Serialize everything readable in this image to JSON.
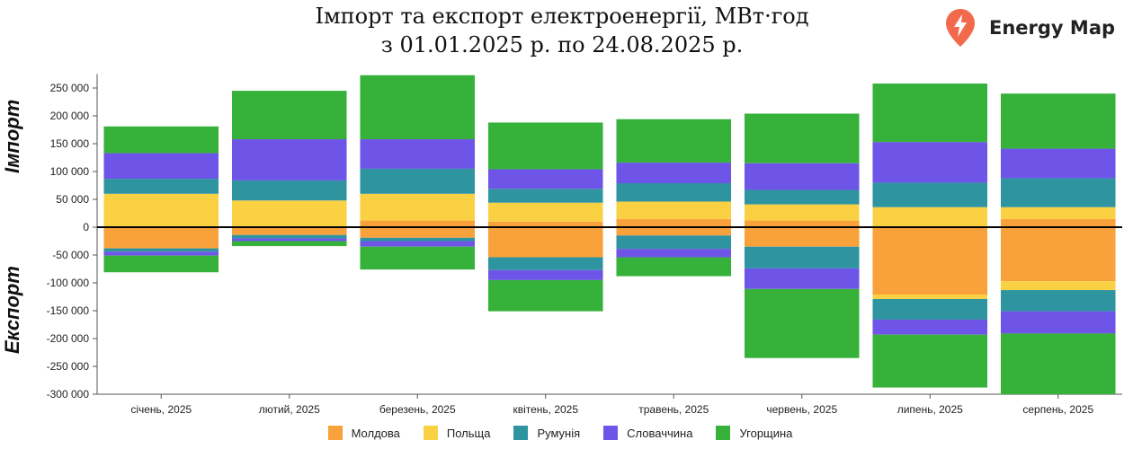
{
  "title": {
    "line1": "Імпорт та експорт електроенергії, МВт·год",
    "line2": "з 01.01.2025 р. по 24.08.2025 р."
  },
  "brand": {
    "name": "Energy Map",
    "icon": "lightning-pin-icon",
    "color": "#f26a4b"
  },
  "side_labels": {
    "import": "Імпорт",
    "export": "Експорт"
  },
  "chart_data": {
    "type": "bar",
    "stacked": true,
    "diverging": true,
    "title": "Імпорт та експорт електроенергії, МВт·год",
    "subtitle": "з 01.01.2025 р. по 24.08.2025 р.",
    "categories": [
      "січень, 2025",
      "лютий, 2025",
      "березень, 2025",
      "квітень, 2025",
      "травень, 2025",
      "червень, 2025",
      "липень, 2025",
      "серпень, 2025"
    ],
    "ylim": [
      -300000,
      275000
    ],
    "yticks": [
      250000,
      200000,
      150000,
      100000,
      50000,
      0,
      -50000,
      -100000,
      -150000,
      -200000,
      -250000,
      -300000
    ],
    "ytick_labels": [
      "250 000",
      "200 000",
      "150 000",
      "100 000",
      "50 000",
      "0",
      "-50 000",
      "-100 000",
      "-150 000",
      "-200 000",
      "-250 000",
      "-300 000"
    ],
    "grid": false,
    "legend_position": "bottom",
    "series": [
      {
        "name": "Молдова",
        "color": "#f9a13a",
        "import": [
          0,
          0,
          12000,
          10000,
          15000,
          12000,
          0,
          15000
        ],
        "export": [
          -38000,
          -14000,
          -19000,
          -54000,
          -15000,
          -35000,
          -121000,
          -97000
        ]
      },
      {
        "name": "Польща",
        "color": "#fbd144",
        "import": [
          60000,
          48000,
          48000,
          34000,
          31000,
          29000,
          36000,
          21000
        ],
        "export": [
          0,
          0,
          0,
          0,
          0,
          0,
          -8000,
          -16000
        ]
      },
      {
        "name": "Румунія",
        "color": "#2e94a0",
        "import": [
          27000,
          36000,
          45000,
          25000,
          33000,
          26000,
          44000,
          52000
        ],
        "export": [
          -6000,
          -6000,
          -6000,
          -23000,
          -24000,
          -39000,
          -37000,
          -38000
        ]
      },
      {
        "name": "Словаччина",
        "color": "#6e55e8",
        "import": [
          46000,
          74000,
          53000,
          35000,
          37000,
          48000,
          73000,
          53000
        ],
        "export": [
          -7000,
          -5000,
          -10000,
          -18000,
          -15000,
          -37000,
          -27000,
          -40000
        ]
      },
      {
        "name": "Угорщина",
        "color": "#36b23b",
        "import": [
          48000,
          87000,
          115000,
          84000,
          78000,
          89000,
          105000,
          99000
        ],
        "export": [
          -30000,
          -9000,
          -41000,
          -56000,
          -34000,
          -124000,
          -95000,
          -109000
        ]
      }
    ]
  }
}
